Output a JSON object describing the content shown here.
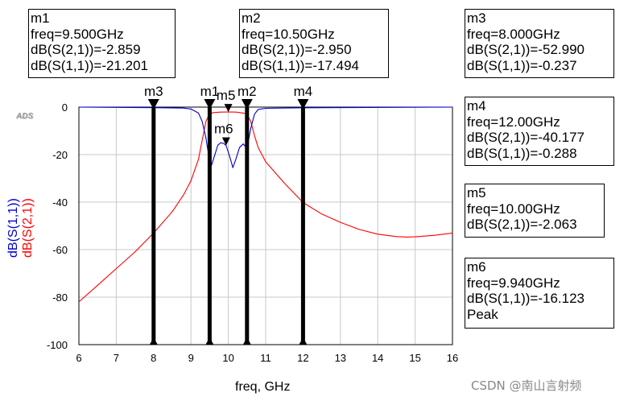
{
  "chart_data": {
    "type": "line",
    "xlabel": "freq, GHz",
    "ylabel_lines": [
      "dB(S(1,1))",
      "dB(S(2,1))"
    ],
    "xlim": [
      6,
      16
    ],
    "ylim": [
      -100,
      0
    ],
    "xticks": [
      6,
      7,
      8,
      9,
      10,
      11,
      12,
      13,
      14,
      15,
      16
    ],
    "yticks": [
      0,
      -20,
      -40,
      -60,
      -80,
      -100
    ],
    "grid": true,
    "series": [
      {
        "name": "dB(S(2,1))",
        "color": "#ff0000",
        "points": [
          [
            6.0,
            -82.0
          ],
          [
            6.5,
            -75.0
          ],
          [
            7.0,
            -68.0
          ],
          [
            7.5,
            -61.0
          ],
          [
            8.0,
            -53.0
          ],
          [
            8.5,
            -44.0
          ],
          [
            8.8,
            -37.0
          ],
          [
            9.0,
            -31.0
          ],
          [
            9.2,
            -22.0
          ],
          [
            9.3,
            -14.0
          ],
          [
            9.4,
            -6.0
          ],
          [
            9.5,
            -2.859
          ],
          [
            9.6,
            -2.3
          ],
          [
            9.8,
            -2.1
          ],
          [
            10.0,
            -2.063
          ],
          [
            10.2,
            -2.1
          ],
          [
            10.4,
            -2.5
          ],
          [
            10.5,
            -2.95
          ],
          [
            10.6,
            -6.0
          ],
          [
            10.7,
            -12.0
          ],
          [
            10.8,
            -17.0
          ],
          [
            11.0,
            -23.0
          ],
          [
            11.5,
            -32.0
          ],
          [
            12.0,
            -40.177
          ],
          [
            12.5,
            -45.0
          ],
          [
            13.0,
            -48.5
          ],
          [
            13.5,
            -51.5
          ],
          [
            14.0,
            -53.5
          ],
          [
            14.5,
            -54.5
          ],
          [
            14.8,
            -54.7
          ],
          [
            15.0,
            -54.6
          ],
          [
            15.5,
            -54.0
          ],
          [
            16.0,
            -53.0
          ]
        ]
      },
      {
        "name": "dB(S(1,1))",
        "color": "#0000cc",
        "points": [
          [
            6.0,
            0.0
          ],
          [
            8.0,
            -0.237
          ],
          [
            8.8,
            -0.4
          ],
          [
            9.0,
            -0.8
          ],
          [
            9.2,
            -2.5
          ],
          [
            9.3,
            -6.0
          ],
          [
            9.4,
            -13.0
          ],
          [
            9.45,
            -18.0
          ],
          [
            9.5,
            -21.201
          ],
          [
            9.55,
            -24.5
          ],
          [
            9.62,
            -21.0
          ],
          [
            9.72,
            -16.0
          ],
          [
            9.8,
            -15.0
          ],
          [
            9.87,
            -15.3
          ],
          [
            9.94,
            -16.123
          ],
          [
            10.0,
            -19.0
          ],
          [
            10.07,
            -22.5
          ],
          [
            10.12,
            -25.5
          ],
          [
            10.2,
            -22.0
          ],
          [
            10.3,
            -17.0
          ],
          [
            10.4,
            -15.5
          ],
          [
            10.5,
            -17.494
          ],
          [
            10.6,
            -9.0
          ],
          [
            10.7,
            -3.0
          ],
          [
            10.8,
            -1.0
          ],
          [
            11.0,
            -0.5
          ],
          [
            12.0,
            -0.288
          ],
          [
            16.0,
            0.0
          ]
        ]
      }
    ],
    "markers": [
      {
        "name": "m1",
        "freq": 9.5,
        "y": -2.859,
        "vline": true,
        "box": [
          "m1",
          "freq=9.500GHz",
          "dB(S(2,1))=-2.859",
          "dB(S(1,1))=-21.201"
        ]
      },
      {
        "name": "m2",
        "freq": 10.5,
        "y": -2.95,
        "vline": true,
        "box": [
          "m2",
          "freq=10.50GHz",
          "dB(S(2,1))=-2.950",
          "dB(S(1,1))=-17.494"
        ]
      },
      {
        "name": "m3",
        "freq": 8.0,
        "y": -0.237,
        "vline": true,
        "box": [
          "m3",
          "freq=8.000GHz",
          "dB(S(2,1))=-52.990",
          "dB(S(1,1))=-0.237"
        ]
      },
      {
        "name": "m4",
        "freq": 12.0,
        "y": -0.288,
        "vline": true,
        "box": [
          "m4",
          "freq=12.00GHz",
          "dB(S(2,1))=-40.177",
          "dB(S(1,1))=-0.288"
        ]
      },
      {
        "name": "m5",
        "freq": 10.0,
        "y": -2.063,
        "vline": false,
        "box": [
          "m5",
          "freq=10.00GHz",
          "dB(S(2,1))=-2.063"
        ]
      },
      {
        "name": "m6",
        "freq": 9.94,
        "y": -16.123,
        "vline": false,
        "box": [
          "m6",
          "freq=9.940GHz",
          "dB(S(1,1))=-16.123",
          "Peak"
        ]
      }
    ]
  },
  "logo_text": "ADS",
  "watermark": "CSDN @南山言射频"
}
